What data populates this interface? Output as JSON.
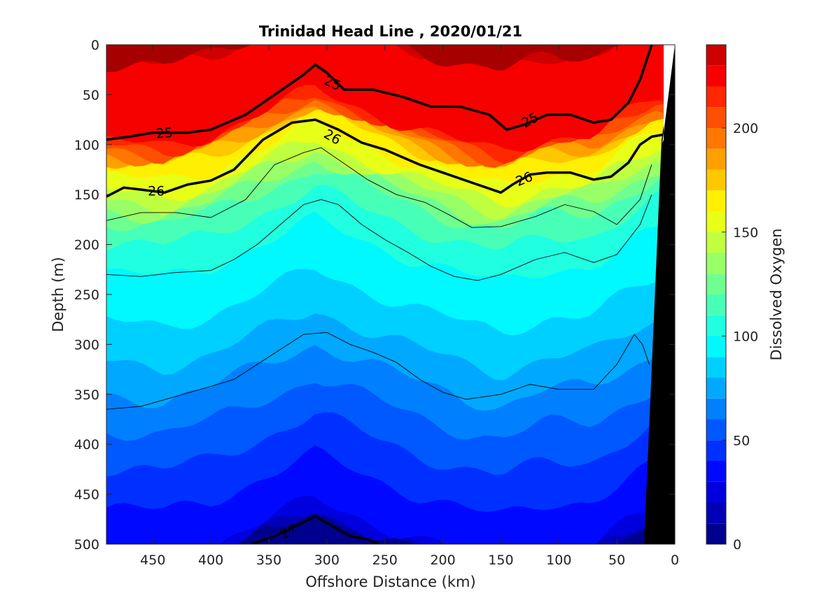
{
  "chart_data": {
    "type": "heatmap",
    "title": "Trinidad Head Line , 2020/01/21",
    "xlabel": "Offshore Distance (km)",
    "ylabel": "Depth (m)",
    "colorbar_label": "Dissolved Oxygen",
    "xlim": [
      490,
      0
    ],
    "x_reversed": true,
    "ylim": [
      0,
      500
    ],
    "y_reversed": true,
    "xticks": [
      "450",
      "400",
      "350",
      "300",
      "250",
      "200",
      "150",
      "100",
      "50",
      "0"
    ],
    "yticks": [
      "0",
      "50",
      "100",
      "150",
      "200",
      "250",
      "300",
      "350",
      "400",
      "450",
      "500"
    ],
    "colorbar_ticks": [
      "0",
      "50",
      "100",
      "150",
      "200"
    ],
    "colorbar_range": [
      0,
      240
    ],
    "colormap": "jet",
    "levels": [
      0,
      10,
      20,
      30,
      40,
      50,
      60,
      70,
      80,
      90,
      100,
      110,
      120,
      130,
      140,
      150,
      160,
      170,
      180,
      190,
      200,
      210,
      220,
      230,
      240
    ],
    "colors": [
      "#00008f",
      "#0000b7",
      "#0000df",
      "#0008ff",
      "#0030ff",
      "#0058ff",
      "#0080ff",
      "#00a8ff",
      "#00d0ff",
      "#00f8ff",
      "#20ffdf",
      "#48ffb7",
      "#70ff8f",
      "#98ff67",
      "#c0ff3f",
      "#e8ff17",
      "#ffef00",
      "#ffc700",
      "#ff9f00",
      "#ff7700",
      "#ff4f00",
      "#ff2700",
      "#f70000",
      "#cf0000",
      "#a70000"
    ],
    "oxygen_profile": {
      "depth": [
        0,
        40,
        80,
        100,
        130,
        160,
        200,
        240,
        300,
        360,
        420,
        480,
        500
      ],
      "oxygen": [
        230,
        226,
        220,
        170,
        150,
        118,
        102,
        95,
        80,
        62,
        46,
        32,
        28
      ],
      "note_shift_km": [
        490,
        440,
        400,
        350,
        310,
        260,
        220,
        180,
        150,
        110,
        70,
        40,
        15
      ],
      "note_shift_m": [
        18,
        22,
        10,
        -15,
        -35,
        -12,
        5,
        20,
        28,
        12,
        10,
        -10,
        -25
      ]
    },
    "contours": [
      {
        "label": "25",
        "bold": true,
        "x": [
          490,
          470,
          450,
          420,
          400,
          370,
          345,
          320,
          310,
          300,
          285,
          260,
          235,
          210,
          185,
          160,
          145,
          130,
          110,
          90,
          70,
          55,
          40,
          30,
          20
        ],
        "y": [
          95,
          92,
          88,
          88,
          85,
          70,
          50,
          30,
          20,
          28,
          45,
          45,
          52,
          62,
          62,
          70,
          85,
          80,
          70,
          70,
          78,
          75,
          58,
          35,
          0
        ]
      },
      {
        "label": "26",
        "bold": true,
        "x": [
          490,
          475,
          460,
          440,
          420,
          400,
          380,
          355,
          330,
          310,
          290,
          270,
          250,
          220,
          200,
          175,
          150,
          140,
          125,
          110,
          90,
          70,
          55,
          40,
          30,
          20,
          10
        ],
        "y": [
          152,
          143,
          145,
          148,
          140,
          136,
          125,
          95,
          78,
          75,
          85,
          98,
          105,
          120,
          128,
          138,
          148,
          140,
          130,
          128,
          128,
          135,
          132,
          118,
          100,
          92,
          90
        ]
      },
      {
        "label": "27",
        "bold": true,
        "x": [
          365,
          345,
          320,
          310,
          295,
          280,
          265,
          255
        ],
        "y": [
          500,
          492,
          478,
          472,
          482,
          492,
          495,
          500
        ]
      },
      {
        "label": "",
        "bold": false,
        "x": [
          490,
          460,
          430,
          400,
          370,
          345,
          320,
          305,
          290,
          265,
          240,
          215,
          195,
          175,
          150,
          120,
          95,
          70,
          50,
          30,
          20
        ],
        "y": [
          176,
          168,
          168,
          173,
          155,
          120,
          108,
          103,
          115,
          135,
          150,
          158,
          170,
          183,
          182,
          172,
          160,
          167,
          180,
          155,
          120
        ]
      },
      {
        "label": "",
        "bold": false,
        "x": [
          490,
          460,
          430,
          400,
          380,
          360,
          340,
          320,
          305,
          290,
          270,
          250,
          230,
          210,
          190,
          170,
          150,
          120,
          95,
          70,
          50,
          30,
          20
        ],
        "y": [
          230,
          232,
          228,
          226,
          215,
          200,
          180,
          160,
          155,
          160,
          180,
          195,
          208,
          222,
          232,
          236,
          230,
          215,
          208,
          218,
          210,
          180,
          150
        ]
      },
      {
        "label": "",
        "bold": false,
        "x": [
          490,
          460,
          430,
          400,
          380,
          360,
          340,
          320,
          300,
          280,
          260,
          240,
          220,
          200,
          180,
          150,
          125,
          100,
          70,
          50,
          35,
          28,
          22
        ],
        "y": [
          365,
          362,
          352,
          342,
          335,
          320,
          305,
          290,
          288,
          300,
          308,
          318,
          335,
          348,
          355,
          350,
          340,
          345,
          345,
          320,
          290,
          300,
          320
        ]
      }
    ]
  }
}
